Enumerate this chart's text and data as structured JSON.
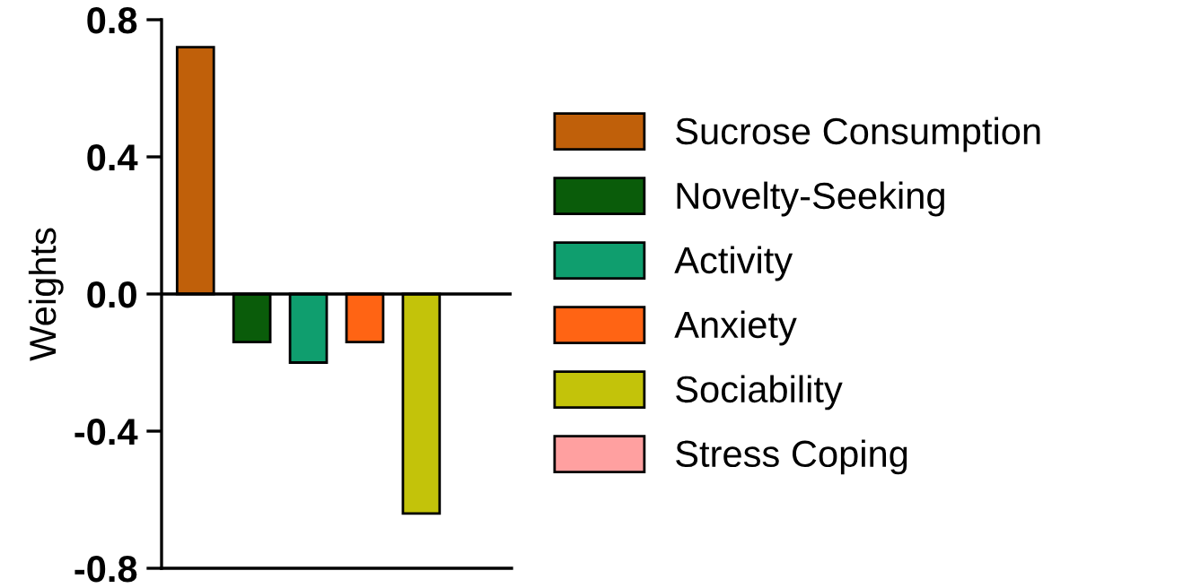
{
  "chart_data": {
    "type": "bar",
    "ylabel": "Weights",
    "categories": [
      null,
      null,
      null,
      null,
      null,
      null
    ],
    "series": [
      {
        "name": "Sucrose Consumption",
        "color": "#c0600a",
        "values": [
          0.72,
          null,
          null,
          null,
          null,
          null
        ]
      },
      {
        "name": "Novelty-Seeking",
        "color": "#0a5c0a",
        "values": [
          null,
          -0.14,
          null,
          null,
          null,
          null
        ]
      },
      {
        "name": "Activity",
        "color": "#0f9e6e",
        "values": [
          null,
          null,
          -0.2,
          null,
          null,
          null
        ]
      },
      {
        "name": "Anxiety",
        "color": "#ff6414",
        "values": [
          null,
          null,
          null,
          -0.14,
          null,
          null
        ]
      },
      {
        "name": "Sociability",
        "color": "#c3c30a",
        "values": [
          null,
          null,
          null,
          null,
          -0.64,
          null
        ]
      },
      {
        "name": "Stress Coping",
        "color": "#ffa0a0",
        "values": [
          null,
          null,
          null,
          null,
          null,
          null
        ]
      }
    ],
    "ylim": [
      -0.8,
      0.8
    ],
    "yticks": [
      {
        "value": -0.8,
        "label": "-0.8"
      },
      {
        "value": -0.4,
        "label": "-0.4"
      },
      {
        "value": 0,
        "label": "0.0"
      },
      {
        "value": 0.4,
        "label": "0.4"
      },
      {
        "value": 0.8,
        "label": "0.8"
      }
    ],
    "ref_lines": [
      {
        "axis": "y",
        "value": 0,
        "color": "#000000"
      }
    ],
    "grid": false,
    "legend": "right",
    "tick_labels": "y"
  }
}
